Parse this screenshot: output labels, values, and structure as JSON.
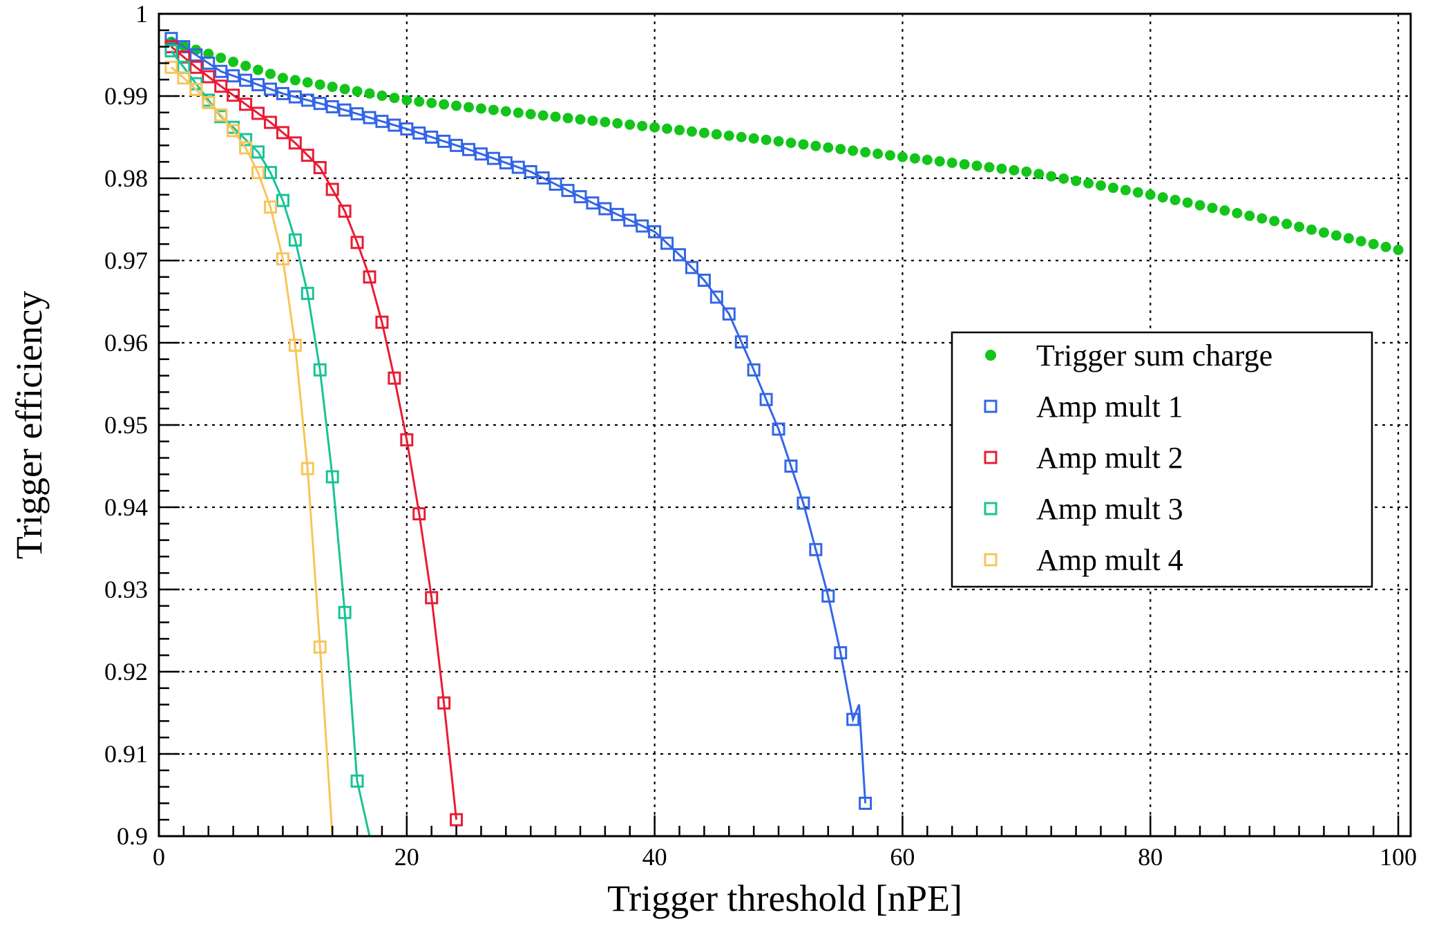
{
  "chart_data": {
    "type": "scatter",
    "title": "",
    "xlabel": "Trigger threshold [nPE]",
    "ylabel": "Trigger efficiency",
    "xlim": [
      0,
      101
    ],
    "ylim": [
      0.9,
      1.0
    ],
    "x_ticks": [
      0,
      20,
      40,
      60,
      80,
      100
    ],
    "y_ticks": [
      0.9,
      0.91,
      0.92,
      0.93,
      0.94,
      0.95,
      0.96,
      0.97,
      0.98,
      0.99,
      1
    ],
    "x_tick_labels": [
      "0",
      "20",
      "40",
      "60",
      "80",
      "100"
    ],
    "y_tick_labels": [
      "0.9",
      "0.91",
      "0.92",
      "0.93",
      "0.94",
      "0.95",
      "0.96",
      "0.97",
      "0.98",
      "0.99",
      "1"
    ],
    "grid": true,
    "legend_position": "right-middle",
    "series": [
      {
        "name": "Trigger sum charge",
        "marker": "filled-circle",
        "color": "#13c41b",
        "line": false,
        "x": [
          1,
          10,
          20,
          30,
          40,
          50,
          60,
          70,
          80,
          90,
          100
        ],
        "y": [
          0.9966,
          0.9922,
          0.9895,
          0.9878,
          0.9862,
          0.9845,
          0.9826,
          0.9808,
          0.978,
          0.9748,
          0.9713
        ]
      },
      {
        "name": "Amp mult 1",
        "marker": "open-square",
        "color": "#3366e6",
        "line": true,
        "x": [
          1,
          5,
          10,
          15,
          20,
          25,
          30,
          35,
          40,
          42,
          44,
          46,
          48,
          50,
          52,
          54,
          55,
          56,
          56.5,
          57
        ],
        "y": [
          0.997,
          0.993,
          0.9903,
          0.9883,
          0.986,
          0.9835,
          0.9808,
          0.977,
          0.9735,
          0.9707,
          0.9676,
          0.9635,
          0.9567,
          0.9495,
          0.9405,
          0.9292,
          0.9223,
          0.9142,
          0.916,
          0.904
        ]
      },
      {
        "name": "Amp mult 2",
        "marker": "open-square",
        "color": "#e81c34",
        "line": true,
        "x": [
          1,
          3,
          5,
          7,
          9,
          11,
          13,
          15,
          16,
          17,
          18,
          19,
          20,
          21,
          22,
          23,
          24
        ],
        "y": [
          0.996,
          0.9935,
          0.9912,
          0.989,
          0.9868,
          0.9843,
          0.9813,
          0.976,
          0.9722,
          0.968,
          0.9625,
          0.9557,
          0.9482,
          0.9392,
          0.929,
          0.9162,
          0.902
        ]
      },
      {
        "name": "Amp mult 3",
        "marker": "open-square",
        "color": "#17c495",
        "line": true,
        "x": [
          1,
          2,
          3,
          4,
          5,
          6,
          7,
          8,
          9,
          10,
          11,
          12,
          13,
          14,
          15,
          16,
          17
        ],
        "y": [
          0.9955,
          0.9935,
          0.9915,
          0.9895,
          0.9875,
          0.9862,
          0.9847,
          0.9832,
          0.9807,
          0.9773,
          0.9725,
          0.966,
          0.9567,
          0.9437,
          0.9272,
          0.9067,
          0.9
        ]
      },
      {
        "name": "Amp mult 4",
        "marker": "open-square",
        "color": "#f7c55a",
        "line": true,
        "x": [
          1,
          2,
          3,
          4,
          5,
          6,
          7,
          8,
          9,
          10,
          11,
          12,
          13,
          14
        ],
        "y": [
          0.9935,
          0.9922,
          0.9908,
          0.9892,
          0.9877,
          0.9858,
          0.9837,
          0.9807,
          0.9765,
          0.9702,
          0.9597,
          0.9447,
          0.923,
          0.9
        ]
      }
    ]
  }
}
